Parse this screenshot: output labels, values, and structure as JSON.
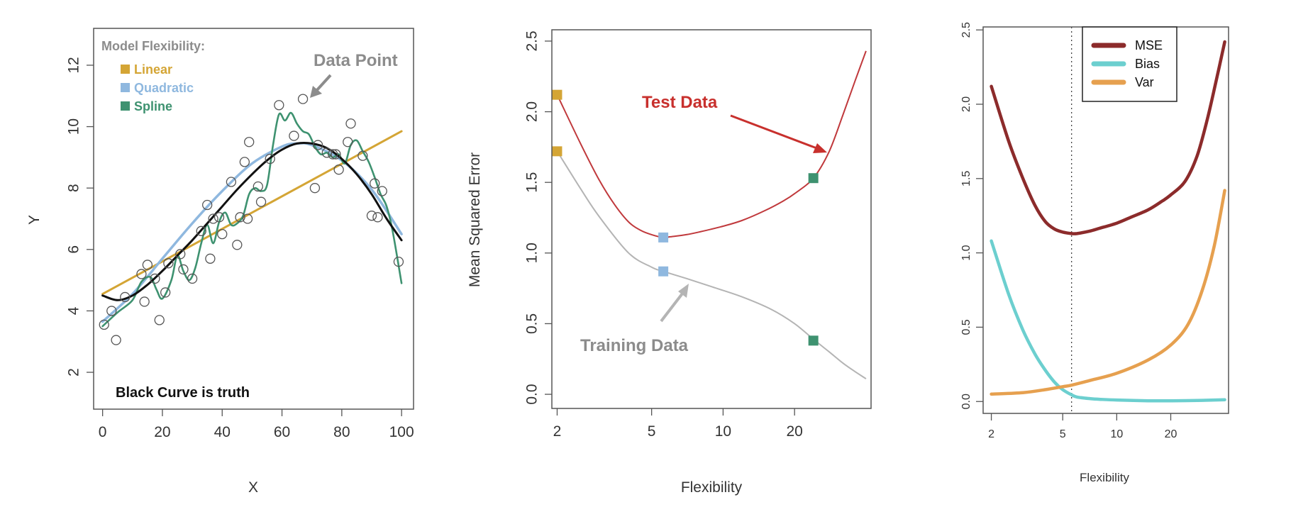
{
  "colors": {
    "linear": "#d4a535",
    "quadratic": "#8fb8df",
    "spline": "#3e9270",
    "truth": "#111111",
    "test": "#c0393c",
    "training": "#b4b4b4",
    "mse": "#8c2b2b",
    "bias": "#6ccfcf",
    "var": "#e6a04f",
    "label_gray": "#8c8c8c",
    "test_label": "#c8302d"
  },
  "chart_data": [
    {
      "type": "scatter",
      "xlabel": "X",
      "ylabel": "Y",
      "xlim": [
        -3,
        104
      ],
      "ylim": [
        0.8,
        13.2
      ],
      "xticks": [
        0,
        20,
        40,
        60,
        80,
        100
      ],
      "yticks": [
        2,
        4,
        6,
        8,
        10,
        12
      ],
      "legend": {
        "title": "Model Flexibility:",
        "items": [
          "Linear",
          "Quadratic",
          "Spline"
        ],
        "position": "top-left"
      },
      "annotations": [
        "Data Point",
        "Black Curve is truth"
      ],
      "points": [
        [
          0.5,
          3.55
        ],
        [
          3,
          4.0
        ],
        [
          4.5,
          3.05
        ],
        [
          7.5,
          4.45
        ],
        [
          13,
          5.2
        ],
        [
          14,
          4.3
        ],
        [
          15,
          5.5
        ],
        [
          17.5,
          5.05
        ],
        [
          19,
          3.7
        ],
        [
          21,
          4.6
        ],
        [
          22,
          5.55
        ],
        [
          26,
          5.85
        ],
        [
          27,
          5.35
        ],
        [
          30,
          5.05
        ],
        [
          33,
          6.6
        ],
        [
          35,
          7.45
        ],
        [
          36,
          5.7
        ],
        [
          37,
          7.0
        ],
        [
          39,
          7.05
        ],
        [
          40,
          6.5
        ],
        [
          43,
          8.2
        ],
        [
          45,
          6.15
        ],
        [
          46,
          7.05
        ],
        [
          47.5,
          8.85
        ],
        [
          48.5,
          7.0
        ],
        [
          49,
          9.5
        ],
        [
          52,
          8.05
        ],
        [
          53,
          7.55
        ],
        [
          56,
          8.95
        ],
        [
          59,
          10.7
        ],
        [
          64,
          9.7
        ],
        [
          67,
          10.9
        ],
        [
          71,
          8.0
        ],
        [
          72,
          9.4
        ],
        [
          75,
          9.15
        ],
        [
          77,
          9.1
        ],
        [
          78,
          9.1
        ],
        [
          79,
          8.6
        ],
        [
          82,
          9.5
        ],
        [
          83,
          10.1
        ],
        [
          87,
          9.05
        ],
        [
          90,
          7.1
        ],
        [
          91,
          8.15
        ],
        [
          92,
          7.05
        ],
        [
          93.5,
          7.9
        ],
        [
          99,
          5.6
        ]
      ],
      "series": [
        {
          "name": "Linear",
          "x": [
            0,
            100
          ],
          "y": [
            4.55,
            9.85
          ]
        },
        {
          "name": "Quadratic",
          "x": [
            0,
            10,
            20,
            30,
            40,
            50,
            60,
            65,
            70,
            80,
            90,
            100
          ],
          "y": [
            3.65,
            4.55,
            5.7,
            6.85,
            7.9,
            8.8,
            9.35,
            9.45,
            9.4,
            8.9,
            7.95,
            6.5
          ]
        },
        {
          "name": "Spline",
          "x": [
            0,
            5,
            10,
            13,
            16,
            18,
            20,
            23,
            25,
            27,
            29,
            31,
            33,
            35,
            37,
            39,
            41,
            43,
            45,
            47,
            49,
            51,
            53,
            55,
            57,
            59,
            61,
            63,
            65,
            67,
            69,
            71,
            73,
            75,
            77,
            79,
            81,
            83,
            85,
            87,
            89,
            91,
            93,
            95,
            97,
            100
          ],
          "y": [
            3.5,
            3.95,
            4.35,
            4.95,
            5.1,
            4.7,
            4.4,
            5.0,
            5.8,
            5.3,
            5.0,
            5.4,
            6.2,
            6.8,
            6.2,
            6.9,
            7.2,
            6.8,
            6.85,
            7.1,
            7.8,
            8.0,
            7.9,
            8.1,
            9.4,
            10.4,
            10.2,
            10.45,
            10.1,
            9.85,
            9.75,
            9.35,
            9.1,
            9.15,
            9.0,
            9.1,
            8.8,
            9.4,
            9.55,
            9.2,
            8.85,
            8.35,
            7.8,
            7.4,
            6.6,
            4.9
          ]
        },
        {
          "name": "Truth",
          "x": [
            0,
            5,
            10,
            15,
            20,
            25,
            30,
            35,
            40,
            45,
            50,
            55,
            60,
            65,
            70,
            75,
            80,
            85,
            90,
            95,
            100
          ],
          "y": [
            4.5,
            4.35,
            4.5,
            4.85,
            5.3,
            5.8,
            6.3,
            6.85,
            7.4,
            7.95,
            8.45,
            8.9,
            9.25,
            9.45,
            9.45,
            9.3,
            8.95,
            8.45,
            7.8,
            7.0,
            6.3
          ]
        }
      ]
    },
    {
      "type": "line",
      "xscale": "log",
      "xlabel": "Flexibility",
      "ylabel": "Mean Squared Error",
      "xlim": [
        1.9,
        42
      ],
      "ylim": [
        -0.1,
        2.58
      ],
      "xticks": [
        2,
        5,
        10,
        20
      ],
      "yticks": [
        "0.0",
        "0.5",
        "1.0",
        "1.5",
        "2.0",
        "2.5"
      ],
      "annotations": [
        "Test Data",
        "Training Data"
      ],
      "series": [
        {
          "name": "Test Data",
          "x": [
            2,
            2.5,
            3,
            3.5,
            4,
            4.5,
            5,
            5.6,
            6,
            7,
            8,
            10,
            12,
            15,
            18,
            20,
            24,
            28,
            32,
            36,
            40
          ],
          "y": [
            2.12,
            1.78,
            1.52,
            1.34,
            1.22,
            1.16,
            1.13,
            1.11,
            1.115,
            1.13,
            1.15,
            1.19,
            1.23,
            1.3,
            1.37,
            1.42,
            1.53,
            1.72,
            1.98,
            2.22,
            2.43
          ]
        },
        {
          "name": "Training Data",
          "x": [
            2,
            2.5,
            3,
            4,
            5,
            5.6,
            7,
            9,
            12,
            16,
            20,
            24,
            28,
            32,
            36,
            40
          ],
          "y": [
            1.72,
            1.46,
            1.26,
            1.0,
            0.9,
            0.87,
            0.82,
            0.76,
            0.69,
            0.6,
            0.5,
            0.39,
            0.3,
            0.22,
            0.16,
            0.11
          ]
        }
      ],
      "markers": [
        {
          "x": 2,
          "y": 2.12,
          "color": "linear"
        },
        {
          "x": 2,
          "y": 1.72,
          "color": "linear"
        },
        {
          "x": 5.6,
          "y": 1.11,
          "color": "quadratic"
        },
        {
          "x": 5.6,
          "y": 0.87,
          "color": "quadratic"
        },
        {
          "x": 24,
          "y": 1.53,
          "color": "spline"
        },
        {
          "x": 24,
          "y": 0.38,
          "color": "spline"
        }
      ]
    },
    {
      "type": "line",
      "xscale": "log",
      "xlabel": "Flexibility",
      "ylabel": "",
      "xlim": [
        1.8,
        42
      ],
      "ylim": [
        -0.08,
        2.52
      ],
      "xticks": [
        2,
        5,
        10,
        20
      ],
      "yticks": [
        "0.0",
        "0.5",
        "1.0",
        "1.5",
        "2.0",
        "2.5"
      ],
      "vline": 5.6,
      "legend": {
        "items": [
          "MSE",
          "Bias",
          "Var"
        ],
        "position": "top-left"
      },
      "series": [
        {
          "name": "MSE",
          "x": [
            2,
            2.5,
            3,
            3.5,
            4,
            4.5,
            5,
            5.6,
            6,
            7,
            8,
            10,
            12,
            15,
            18,
            20,
            24,
            28,
            32,
            36,
            40
          ],
          "y": [
            2.12,
            1.75,
            1.5,
            1.32,
            1.21,
            1.16,
            1.14,
            1.13,
            1.13,
            1.145,
            1.165,
            1.2,
            1.24,
            1.29,
            1.35,
            1.39,
            1.48,
            1.65,
            1.9,
            2.17,
            2.42
          ]
        },
        {
          "name": "Bias",
          "x": [
            2,
            2.5,
            3,
            3.5,
            4,
            4.5,
            5,
            5.6,
            6,
            7,
            8,
            10,
            15,
            20,
            30,
            40
          ],
          "y": [
            1.08,
            0.72,
            0.48,
            0.32,
            0.21,
            0.13,
            0.08,
            0.045,
            0.03,
            0.02,
            0.015,
            0.01,
            0.005,
            0.005,
            0.008,
            0.012
          ]
        },
        {
          "name": "Var",
          "x": [
            2,
            3,
            4,
            5,
            5.6,
            7,
            10,
            15,
            20,
            25,
            30,
            35,
            40
          ],
          "y": [
            0.05,
            0.06,
            0.08,
            0.1,
            0.11,
            0.14,
            0.19,
            0.28,
            0.38,
            0.52,
            0.75,
            1.05,
            1.42
          ]
        }
      ]
    }
  ]
}
